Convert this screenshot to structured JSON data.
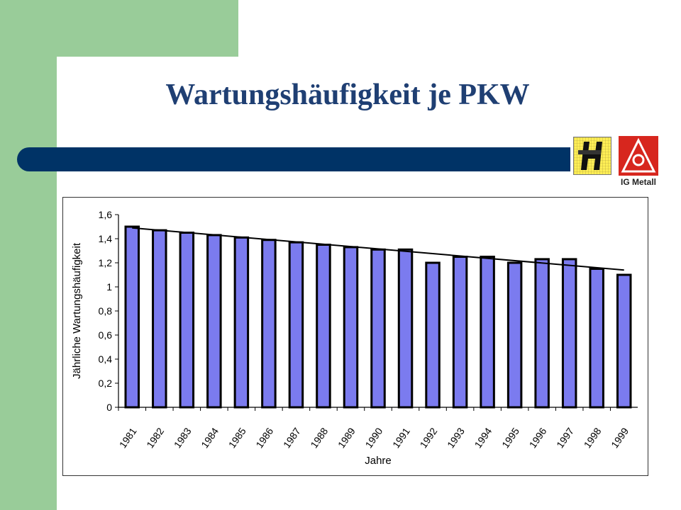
{
  "slide": {
    "title": "Wartungshäufigkeit je PKW",
    "logo_right_text": "IG Metall"
  },
  "colors": {
    "sidebar_green": "#99cc99",
    "title_blue": "#1f3f73",
    "rule_navy": "#003366",
    "bar_fill": "#7b7bef",
    "ig_red": "#d7261e"
  },
  "icons": [
    "h-logo-icon",
    "ig-metall-logo-icon"
  ],
  "chart_data": {
    "type": "bar",
    "xlabel": "Jahre",
    "ylabel": "Jährliche Wartungshäufigkeit",
    "ylim": [
      0,
      1.6
    ],
    "y_ticks": [
      "0",
      "0,2",
      "0,4",
      "0,6",
      "0,8",
      "1",
      "1,2",
      "1,4",
      "1,6"
    ],
    "categories": [
      "1981",
      "1982",
      "1983",
      "1984",
      "1985",
      "1986",
      "1987",
      "1988",
      "1989",
      "1990",
      "1991",
      "1992",
      "1993",
      "1994",
      "1995",
      "1996",
      "1997",
      "1998",
      "1999"
    ],
    "values": [
      1.5,
      1.47,
      1.45,
      1.43,
      1.41,
      1.39,
      1.37,
      1.35,
      1.33,
      1.31,
      1.31,
      1.2,
      1.25,
      1.25,
      1.2,
      1.23,
      1.23,
      1.15,
      1.1
    ],
    "trendline": {
      "start": 1.49,
      "end": 1.14
    },
    "grid": false,
    "legend": "none"
  }
}
